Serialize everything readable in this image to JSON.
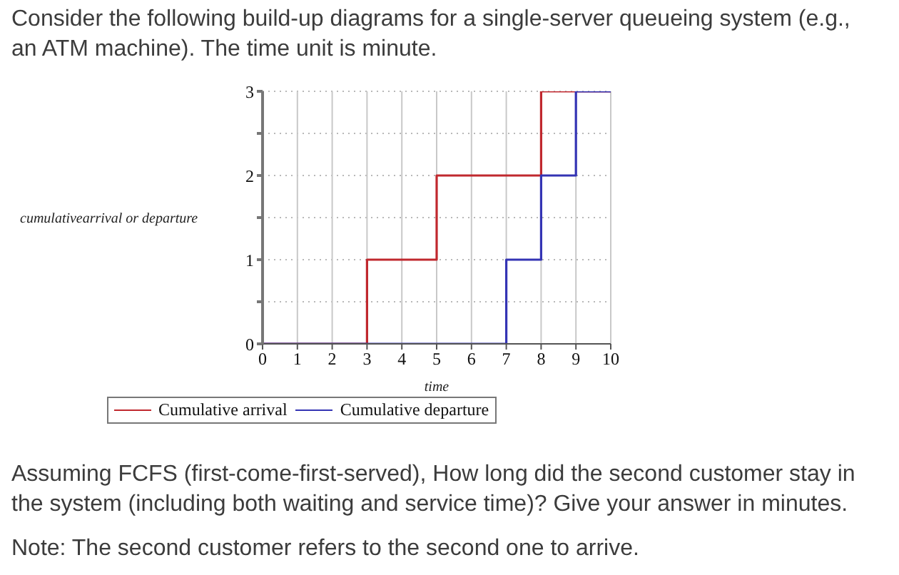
{
  "chart_data": {
    "type": "step",
    "title": "Consider the following build-up diagrams for a single-server queueing system (e.g., an ATM machine). The time unit is minute.",
    "xlabel": "time",
    "ylabel": "cumulativearrival or departure",
    "series": [
      {
        "name": "Cumulative arrival",
        "color": "#c0282e",
        "x": [
          0,
          3,
          5,
          8,
          10
        ],
        "values": [
          0,
          1,
          2,
          3,
          3
        ]
      },
      {
        "name": "Cumulative departure",
        "color": "#3434b4",
        "x": [
          0,
          7,
          8,
          9,
          10
        ],
        "values": [
          0,
          1,
          2,
          3,
          3
        ]
      }
    ],
    "xlim": [
      0,
      10
    ],
    "xticks": [
      0,
      1,
      2,
      3,
      4,
      5,
      6,
      7,
      8,
      9,
      10
    ],
    "ylim": [
      0,
      3
    ],
    "yticks": [
      0,
      {
        "value": 0.5,
        "label": null
      },
      1,
      {
        "value": 1.5,
        "label": null
      },
      2,
      {
        "value": 2.5,
        "label": null
      },
      3
    ],
    "grid": true,
    "legend": "bottom",
    "annotations": [
      "Assuming FCFS (first-come-first-served), How long did the second customer stay in the system (including both waiting and service time)? Give your answer in minutes.",
      "Note: The second customer refers to the second one to arrive."
    ]
  }
}
